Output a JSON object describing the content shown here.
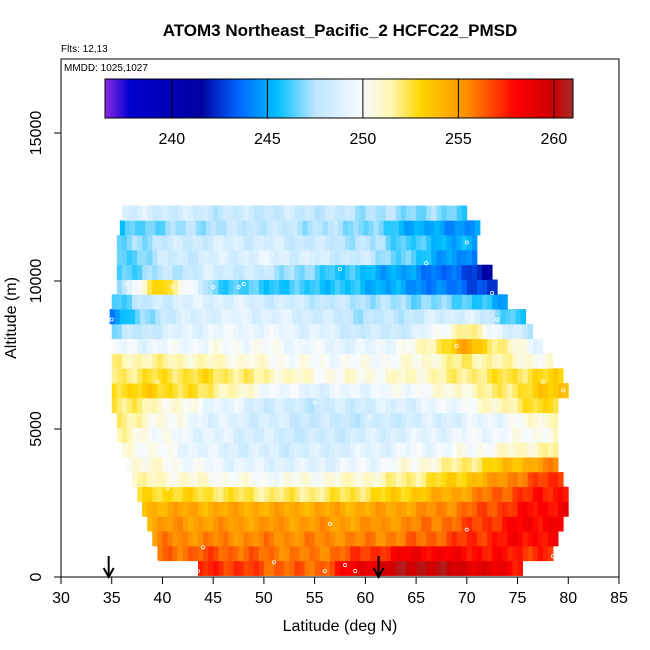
{
  "chart_data": {
    "type": "heatmap",
    "title": "ATOM3 Northeast_Pacific_2 HCFC22_PMSD",
    "notes": [
      "Flts: 12,13",
      "MMDD: 1025,1027"
    ],
    "xlabel": "Latitude (deg N)",
    "ylabel": "Altitude (m)",
    "xlim": [
      30,
      85
    ],
    "ylim": [
      0,
      17500
    ],
    "xticks": [
      30,
      35,
      40,
      45,
      50,
      55,
      60,
      65,
      70,
      75,
      80,
      85
    ],
    "yticks": [
      0,
      5000,
      10000,
      15000
    ],
    "grid": false,
    "colorbar": {
      "range": [
        236.5,
        261
      ],
      "ticks": [
        240,
        245,
        250,
        255,
        260
      ],
      "placement": "top",
      "stops": [
        {
          "v": 236.5,
          "c": "#8a2be2"
        },
        {
          "v": 237.8,
          "c": "#0000d0"
        },
        {
          "v": 241.5,
          "c": "#0000a0"
        },
        {
          "v": 243.5,
          "c": "#0066ff"
        },
        {
          "v": 245.5,
          "c": "#00bfff"
        },
        {
          "v": 247.5,
          "c": "#bde6ff"
        },
        {
          "v": 250,
          "c": "#f8fbff"
        },
        {
          "v": 251.5,
          "c": "#fff7b0"
        },
        {
          "v": 253,
          "c": "#ffd700"
        },
        {
          "v": 255.5,
          "c": "#ff8c00"
        },
        {
          "v": 258,
          "c": "#ff0000"
        },
        {
          "v": 260,
          "c": "#cc0000"
        },
        {
          "v": 261,
          "c": "#a52a2a"
        }
      ]
    },
    "arrows_lat": [
      34.7,
      61.3
    ],
    "alt_levels": [
      300,
      800,
      1300,
      1800,
      2300,
      2800,
      3300,
      3800,
      4300,
      4800,
      5300,
      5800,
      6300,
      6800,
      7300,
      7800,
      8300,
      8800,
      9300,
      9800,
      10300,
      10800,
      11300,
      11800,
      12300
    ],
    "row_extents": [
      [
        43.5,
        75.5
      ],
      [
        39.5,
        78.5
      ],
      [
        39.0,
        79.0
      ],
      [
        38.5,
        79.5
      ],
      [
        38.0,
        80.0
      ],
      [
        37.5,
        80.0
      ],
      [
        37.0,
        79.5
      ],
      [
        36.5,
        79.0
      ],
      [
        36.0,
        79.0
      ],
      [
        35.5,
        79.0
      ],
      [
        35.5,
        79.0
      ],
      [
        35.0,
        79.0
      ],
      [
        35.0,
        80.0
      ],
      [
        35.0,
        79.5
      ],
      [
        35.0,
        78.5
      ],
      [
        35.0,
        77.5
      ],
      [
        35.0,
        76.5
      ],
      [
        34.8,
        75.5
      ],
      [
        35.0,
        74.0
      ],
      [
        35.5,
        73.0
      ],
      [
        35.5,
        72.5
      ],
      [
        35.5,
        71.0
      ],
      [
        35.5,
        71.0
      ],
      [
        35.8,
        71.0
      ],
      [
        36.0,
        70.0
      ]
    ],
    "profile": {
      "lat_knots": [
        35,
        40,
        45,
        50,
        55,
        60,
        65,
        70,
        75,
        80
      ],
      "values": [
        [
          255.0,
          256.0,
          257.5,
          256.5,
          256.0,
          259.0,
          260.5,
          259.5,
          258.0,
          257.0
        ],
        [
          254.5,
          256.0,
          256.5,
          256.0,
          255.5,
          257.0,
          258.5,
          258.0,
          257.5,
          257.0
        ],
        [
          254.0,
          255.5,
          255.5,
          255.5,
          255.5,
          255.5,
          256.0,
          257.0,
          258.0,
          258.0
        ],
        [
          253.5,
          255.0,
          255.0,
          255.0,
          255.0,
          255.0,
          255.5,
          256.5,
          258.0,
          258.5
        ],
        [
          253.0,
          254.5,
          254.5,
          254.5,
          254.5,
          254.5,
          255.0,
          256.0,
          257.5,
          258.5
        ],
        [
          252.0,
          253.0,
          252.5,
          252.0,
          252.0,
          252.5,
          253.5,
          255.0,
          257.0,
          258.0
        ],
        [
          251.5,
          251.0,
          250.5,
          250.0,
          250.5,
          251.0,
          252.0,
          253.5,
          256.0,
          257.5
        ],
        [
          251.0,
          250.5,
          249.5,
          249.0,
          249.0,
          249.5,
          250.5,
          252.0,
          254.0,
          256.0
        ],
        [
          251.0,
          250.0,
          249.0,
          248.5,
          248.5,
          249.0,
          249.5,
          250.0,
          251.0,
          252.0
        ],
        [
          251.5,
          250.0,
          249.0,
          248.5,
          248.0,
          248.5,
          249.0,
          249.5,
          250.0,
          251.0
        ],
        [
          252.0,
          250.5,
          249.0,
          248.5,
          248.0,
          248.0,
          248.5,
          249.0,
          250.0,
          252.0
        ],
        [
          252.5,
          251.0,
          249.5,
          248.5,
          248.0,
          248.5,
          249.0,
          250.0,
          252.0,
          253.5
        ],
        [
          253.0,
          253.0,
          252.0,
          250.0,
          249.0,
          249.5,
          250.0,
          251.0,
          252.5,
          254.0
        ],
        [
          252.0,
          252.5,
          252.5,
          251.5,
          250.5,
          250.5,
          251.0,
          252.0,
          252.5,
          253.0
        ],
        [
          251.5,
          251.5,
          251.0,
          250.5,
          250.0,
          250.0,
          250.5,
          252.0,
          251.0,
          250.0
        ],
        [
          249.5,
          249.5,
          250.0,
          250.0,
          249.5,
          249.0,
          250.5,
          254.5,
          250.5,
          248.0
        ],
        [
          247.0,
          248.5,
          249.5,
          249.5,
          249.0,
          248.0,
          248.5,
          252.0,
          248.0,
          246.5
        ],
        [
          244.5,
          248.0,
          249.0,
          249.0,
          248.5,
          247.5,
          248.0,
          249.0,
          246.0,
          244.5
        ],
        [
          246.0,
          248.5,
          249.0,
          248.5,
          248.0,
          247.5,
          247.0,
          246.5,
          244.0,
          242.0
        ],
        [
          246.5,
          253.5,
          246.5,
          246.0,
          246.0,
          245.5,
          244.5,
          243.5,
          241.5,
          237.5
        ],
        [
          246.0,
          247.5,
          248.5,
          248.0,
          246.5,
          245.5,
          244.5,
          243.0,
          240.5,
          237.0
        ],
        [
          245.5,
          248.0,
          248.5,
          249.0,
          248.5,
          248.0,
          246.0,
          244.0,
          242.0,
          241.0
        ],
        [
          246.0,
          248.0,
          248.5,
          248.5,
          248.0,
          247.5,
          246.0,
          245.0,
          244.0,
          244.0
        ],
        [
          245.5,
          247.0,
          247.5,
          248.0,
          247.5,
          247.0,
          245.0,
          244.5,
          244.0,
          244.0
        ],
        [
          248.5,
          248.5,
          248.0,
          248.0,
          248.0,
          247.5,
          247.0,
          246.5,
          246.0,
          246.0
        ]
      ]
    },
    "sample_points": [
      [
        35.2,
        11800
      ],
      [
        35.0,
        8700
      ],
      [
        36.5,
        9900
      ],
      [
        41.0,
        9800
      ],
      [
        45.0,
        9800
      ],
      [
        47.5,
        9800
      ],
      [
        48.0,
        9900
      ],
      [
        57.5,
        10400
      ],
      [
        66.0,
        10600
      ],
      [
        70.0,
        11300
      ],
      [
        69.0,
        7800
      ],
      [
        72.5,
        9600
      ],
      [
        73.0,
        8700
      ],
      [
        77.5,
        6600
      ],
      [
        79.5,
        6300
      ],
      [
        59.5,
        8000
      ],
      [
        54.0,
        7900
      ],
      [
        62.5,
        7000
      ],
      [
        60.5,
        5400
      ],
      [
        55.0,
        5900
      ],
      [
        39.5,
        6600
      ],
      [
        40.0,
        4200
      ],
      [
        40.5,
        3000
      ],
      [
        44.5,
        3500
      ],
      [
        51.0,
        3200
      ],
      [
        61.0,
        3100
      ],
      [
        56.5,
        1800
      ],
      [
        70.0,
        1600
      ],
      [
        39.5,
        500
      ],
      [
        44.0,
        1000
      ],
      [
        51.0,
        500
      ],
      [
        58.0,
        400
      ],
      [
        59.0,
        200
      ],
      [
        78.5,
        700
      ],
      [
        43.5,
        200
      ],
      [
        56.0,
        200
      ]
    ]
  }
}
